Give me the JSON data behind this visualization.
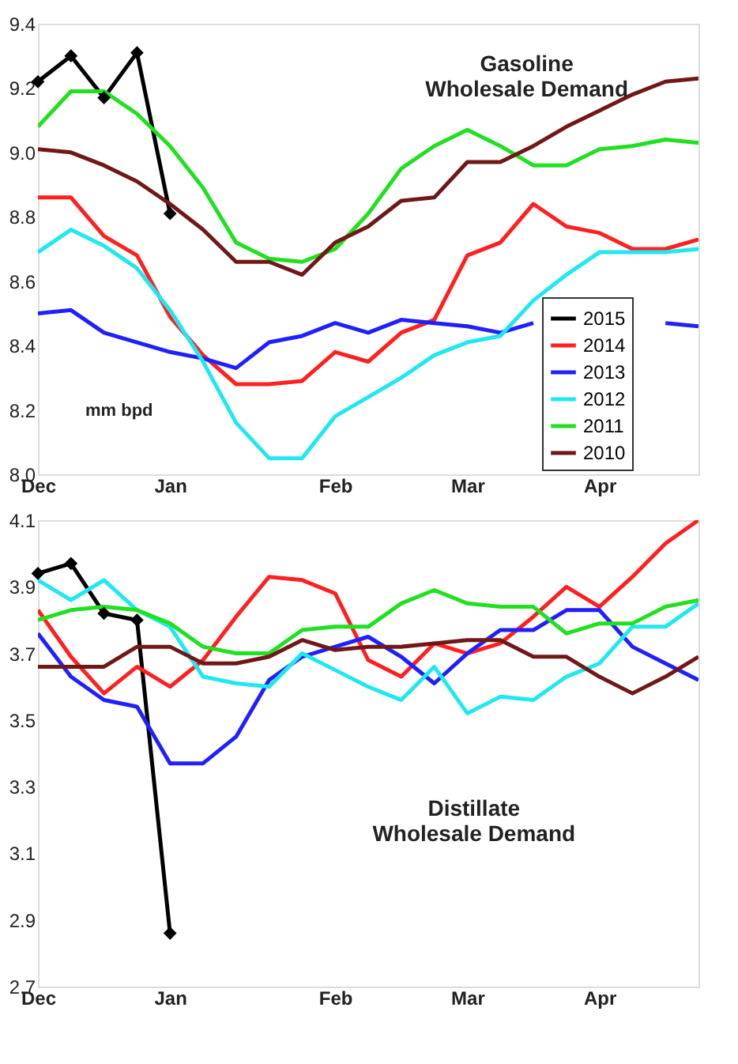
{
  "chart_data": [
    {
      "type": "line",
      "categories": [
        "Dec",
        null,
        null,
        null,
        "Jan",
        null,
        null,
        null,
        null,
        "Feb",
        null,
        null,
        null,
        "Mar",
        null,
        null,
        null,
        "Apr",
        null,
        null,
        null
      ],
      "ylim": [
        8.0,
        9.4
      ],
      "yticks": [
        {
          "value": 8.0,
          "label": "8.0"
        },
        8.2,
        8.4,
        8.6,
        8.8,
        {
          "value": 9.0,
          "label": "9.0"
        },
        9.2,
        9.4
      ],
      "grid": false,
      "legend": "bottom right",
      "annotations": [
        "Gasoline\nWholesale Demand",
        "mm bpd"
      ],
      "series": [
        {
          "name": "2015",
          "color": "#000000",
          "marker": "diamond",
          "values": [
            9.22,
            9.3,
            9.17,
            9.31,
            8.81,
            null,
            null,
            null,
            null,
            null,
            null,
            null,
            null,
            null,
            null,
            null,
            null,
            null,
            null,
            null,
            null
          ]
        },
        {
          "name": "2014",
          "color": "#ff2020",
          "values": [
            8.86,
            8.86,
            8.74,
            8.68,
            8.49,
            8.37,
            8.28,
            8.28,
            8.29,
            8.38,
            8.35,
            8.44,
            8.48,
            8.68,
            8.72,
            8.84,
            8.77,
            8.75,
            8.7,
            8.7,
            8.73
          ]
        },
        {
          "name": "2013",
          "color": "#2020ff",
          "values": [
            8.5,
            8.51,
            8.44,
            8.41,
            8.38,
            8.36,
            8.33,
            8.41,
            8.43,
            8.47,
            8.44,
            8.48,
            8.47,
            8.46,
            8.44,
            8.47,
            null,
            null,
            null,
            8.47,
            8.46
          ]
        },
        {
          "name": "2012",
          "color": "#20e8f0",
          "values": [
            8.69,
            8.76,
            8.71,
            8.64,
            8.51,
            8.35,
            8.16,
            8.05,
            8.05,
            8.18,
            8.24,
            8.3,
            8.37,
            8.41,
            8.43,
            8.54,
            8.62,
            8.69,
            8.69,
            8.69,
            8.7
          ]
        },
        {
          "name": "2011",
          "color": "#20e020",
          "values": [
            9.08,
            9.19,
            9.19,
            9.12,
            9.02,
            8.89,
            8.72,
            8.67,
            8.66,
            8.7,
            8.81,
            8.95,
            9.02,
            9.07,
            9.02,
            8.96,
            8.96,
            9.01,
            9.02,
            9.04,
            9.03
          ]
        },
        {
          "name": "2010",
          "color": "#701818",
          "values": [
            9.01,
            9.0,
            8.96,
            8.91,
            8.84,
            8.76,
            8.66,
            8.66,
            8.62,
            8.72,
            8.77,
            8.85,
            8.86,
            8.97,
            8.97,
            9.02,
            9.08,
            9.13,
            9.18,
            9.22,
            9.23
          ]
        }
      ]
    },
    {
      "type": "line",
      "categories": [
        "Dec",
        null,
        null,
        null,
        "Jan",
        null,
        null,
        null,
        null,
        "Feb",
        null,
        null,
        null,
        "Mar",
        null,
        null,
        null,
        "Apr",
        null,
        null,
        null
      ],
      "ylim": [
        2.7,
        4.1
      ],
      "yticks": [
        2.7,
        2.9,
        3.1,
        3.3,
        3.5,
        3.7,
        3.9,
        4.1
      ],
      "grid": false,
      "annotations": [
        "Distillate\nWholesale Demand"
      ],
      "series": [
        {
          "color": "#000000",
          "marker": "diamond",
          "values": [
            3.94,
            3.97,
            3.82,
            3.8,
            2.86,
            null,
            null,
            null,
            null,
            null,
            null,
            null,
            null,
            null,
            null,
            null,
            null,
            null,
            null,
            null,
            null
          ]
        },
        {
          "color": "#ff2020",
          "values": [
            3.83,
            3.69,
            3.58,
            3.66,
            3.6,
            3.68,
            3.81,
            3.93,
            3.92,
            3.88,
            3.68,
            3.63,
            3.73,
            3.7,
            3.73,
            3.81,
            3.9,
            3.84,
            3.93,
            4.03,
            4.1
          ]
        },
        {
          "color": "#2020ff",
          "values": [
            3.76,
            3.63,
            3.56,
            3.54,
            3.37,
            3.37,
            3.45,
            3.62,
            3.69,
            3.72,
            3.75,
            3.69,
            3.61,
            3.7,
            3.77,
            3.77,
            3.83,
            3.83,
            3.72,
            3.67,
            3.62
          ]
        },
        {
          "color": "#20e8f0",
          "values": [
            3.92,
            3.86,
            3.92,
            3.83,
            3.78,
            3.63,
            3.61,
            3.6,
            3.7,
            3.65,
            3.6,
            3.56,
            3.66,
            3.52,
            3.57,
            3.56,
            3.63,
            3.67,
            3.78,
            3.78,
            3.85
          ]
        },
        {
          "color": "#20e020",
          "values": [
            3.8,
            3.83,
            3.84,
            3.83,
            3.79,
            3.72,
            3.7,
            3.7,
            3.77,
            3.78,
            3.78,
            3.85,
            3.89,
            3.85,
            3.84,
            3.84,
            3.76,
            3.79,
            3.79,
            3.84,
            3.86
          ]
        },
        {
          "color": "#701818",
          "values": [
            3.66,
            3.66,
            3.66,
            3.72,
            3.72,
            3.67,
            3.67,
            3.69,
            3.74,
            3.71,
            3.72,
            3.72,
            3.73,
            3.74,
            3.74,
            3.69,
            3.69,
            3.63,
            3.58,
            3.63,
            3.69
          ]
        }
      ]
    }
  ]
}
